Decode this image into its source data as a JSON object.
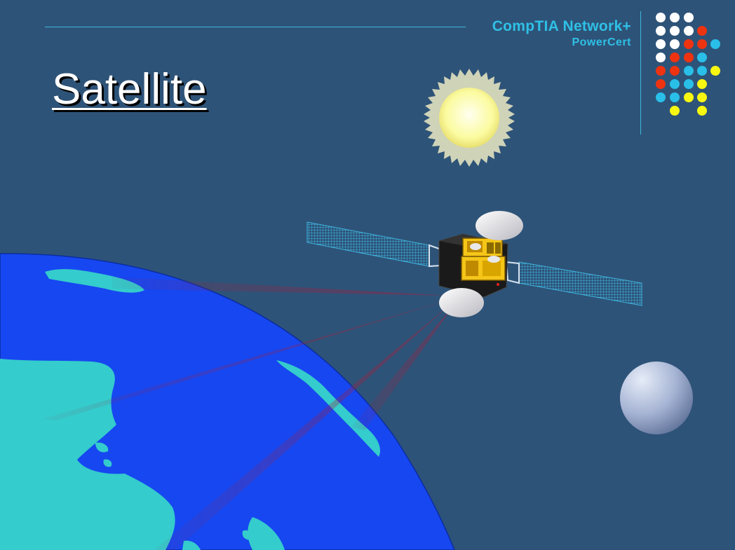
{
  "slide": {
    "title": "Satellite",
    "brand": {
      "line1": "CompTIA Network+",
      "line2": "PowerCert"
    }
  },
  "colors": {
    "background": "#2e5378",
    "accent": "#2fc0e6",
    "ocean": "#1747f0",
    "land": "#34cccc",
    "sun": "#fcfca6",
    "dot_white": "#ffffff",
    "dot_red": "#ee3311",
    "dot_cyan": "#29bfe8",
    "dot_yellow": "#f7f711"
  },
  "icons": {
    "sun": "sun-icon",
    "moon": "moon-icon",
    "satellite": "satellite-icon",
    "earth": "earth-icon"
  }
}
